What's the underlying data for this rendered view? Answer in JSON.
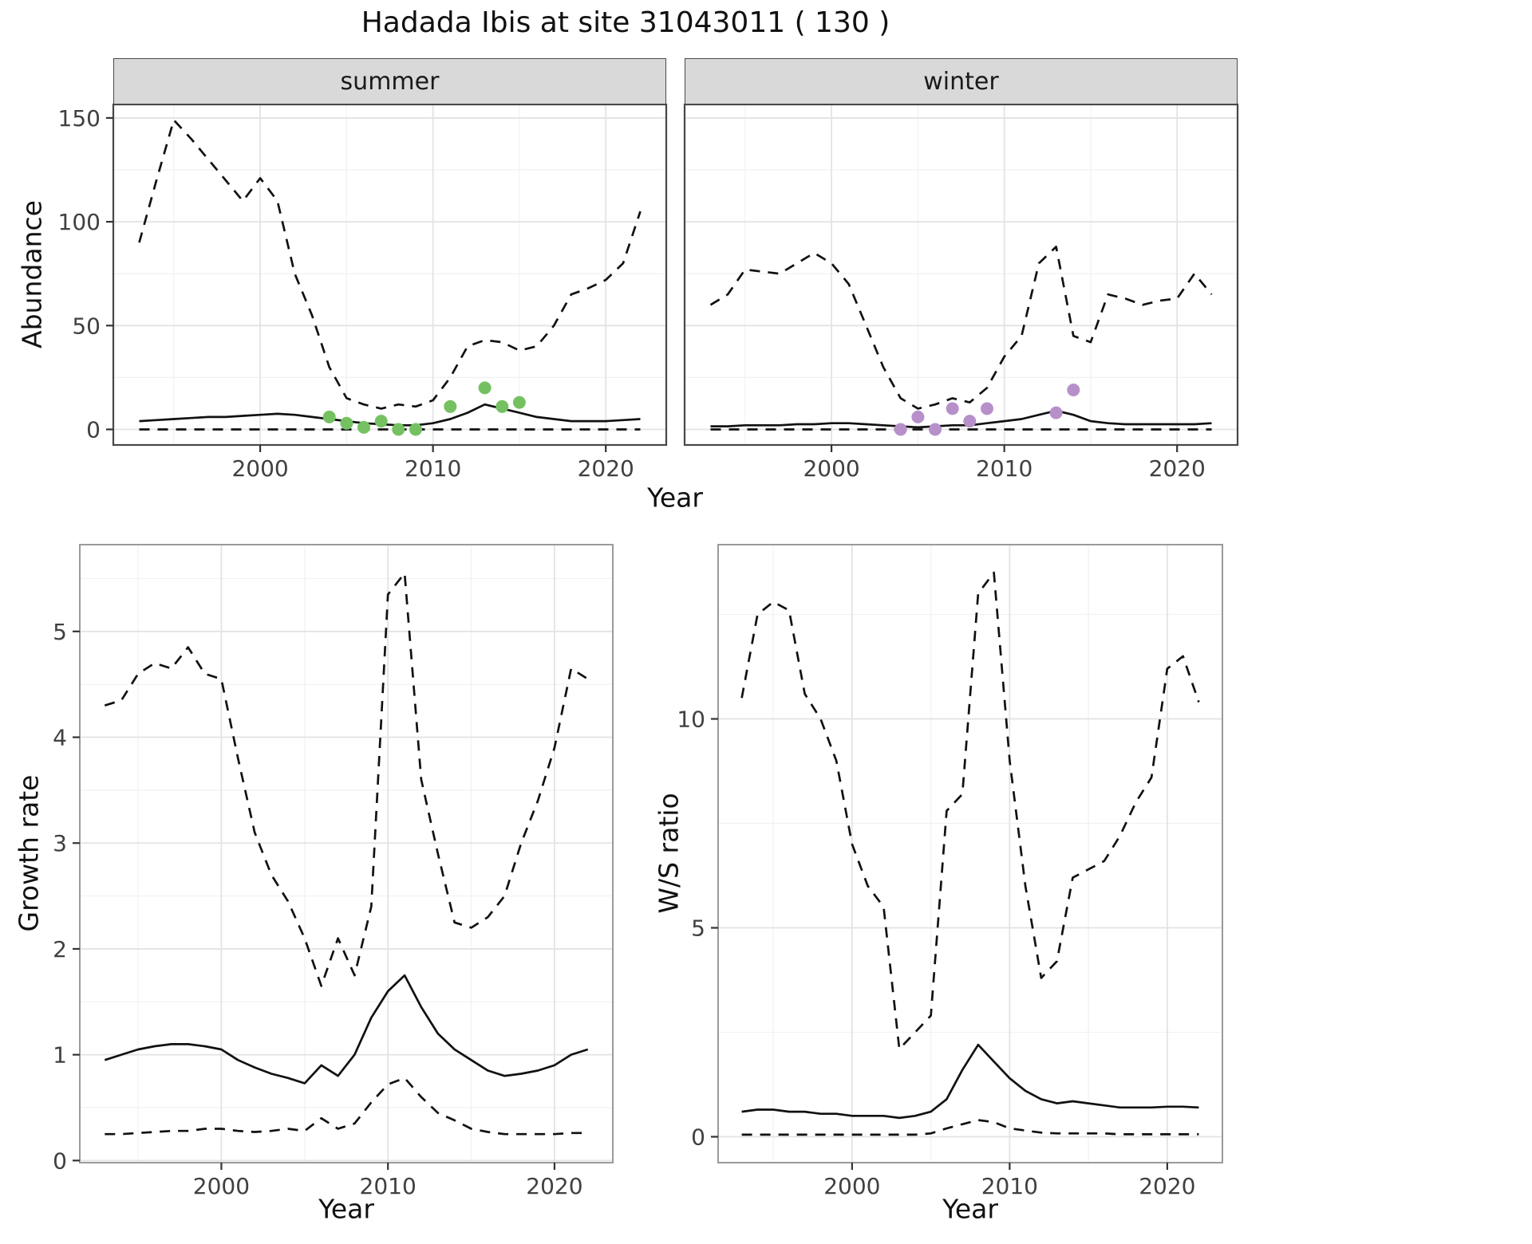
{
  "title": "Hadada Ibis at site 31043011 ( 130 )",
  "colors": {
    "line": "#111111",
    "strip_background": "#d9d9d9",
    "summer_points": "#75c162",
    "winter_points": "#b790ca"
  },
  "chart_data": [
    {
      "id": "abundance_summer",
      "type": "line",
      "facet_label": "summer",
      "xlabel": "Year",
      "ylabel": "Abundance",
      "xlim": [
        1991.5,
        2023.5
      ],
      "ylim": [
        -7.5,
        156.5
      ],
      "xticks": [
        2000,
        2010,
        2020
      ],
      "yticks": [
        0,
        50,
        100,
        150
      ],
      "x_years": [
        1993,
        1994,
        1995,
        1996,
        1997,
        1998,
        1999,
        2000,
        2001,
        2002,
        2003,
        2004,
        2005,
        2006,
        2007,
        2008,
        2009,
        2010,
        2011,
        2012,
        2013,
        2014,
        2015,
        2016,
        2017,
        2018,
        2019,
        2020,
        2021,
        2022
      ],
      "series": [
        {
          "name": "upper_ci",
          "style": "dashed",
          "values": [
            90,
            120,
            149,
            140,
            130,
            120,
            110,
            121,
            110,
            75,
            55,
            30,
            15,
            12,
            10,
            12,
            11,
            14,
            25,
            40,
            43,
            42,
            38,
            40,
            50,
            65,
            68,
            72,
            80,
            105
          ]
        },
        {
          "name": "median",
          "style": "solid",
          "values": [
            4,
            4.5,
            5,
            5.5,
            6,
            6,
            6.5,
            7,
            7.5,
            7,
            6,
            5,
            4,
            3,
            2.5,
            2,
            2,
            3,
            5,
            8,
            12,
            10,
            8,
            6,
            5,
            4,
            4,
            4,
            4.5,
            5
          ]
        },
        {
          "name": "lower_ci",
          "style": "dashed",
          "values": [
            0,
            0,
            0,
            0,
            0,
            0,
            0,
            0,
            0,
            0,
            0,
            0,
            0,
            0,
            0,
            0,
            0,
            0,
            0,
            0,
            0,
            0,
            0,
            0,
            0,
            0,
            0,
            0,
            0,
            0
          ]
        }
      ],
      "points": {
        "name": "observed_counts",
        "color": "#75c162",
        "x": [
          2004,
          2005,
          2006,
          2007,
          2008,
          2009,
          2011,
          2013,
          2014,
          2015
        ],
        "y": [
          6,
          3,
          1,
          4,
          0,
          0,
          11,
          20,
          11,
          13
        ]
      }
    },
    {
      "id": "abundance_winter",
      "type": "line",
      "facet_label": "winter",
      "xlabel": "Year",
      "ylabel": "Abundance",
      "xlim": [
        1991.5,
        2023.5
      ],
      "ylim": [
        -7.5,
        156.5
      ],
      "xticks": [
        2000,
        2010,
        2020
      ],
      "yticks": [
        0,
        50,
        100,
        150
      ],
      "x_years": [
        1993,
        1994,
        1995,
        1996,
        1997,
        1998,
        1999,
        2000,
        2001,
        2002,
        2003,
        2004,
        2005,
        2006,
        2007,
        2008,
        2009,
        2010,
        2011,
        2012,
        2013,
        2014,
        2015,
        2016,
        2017,
        2018,
        2019,
        2020,
        2021,
        2022
      ],
      "series": [
        {
          "name": "upper_ci",
          "style": "dashed",
          "values": [
            60,
            65,
            77,
            76,
            75,
            80,
            85,
            80,
            70,
            50,
            30,
            15,
            10,
            12,
            15,
            13,
            20,
            35,
            45,
            80,
            88,
            45,
            42,
            65,
            63,
            60,
            62,
            63,
            75,
            65
          ]
        },
        {
          "name": "median",
          "style": "solid",
          "values": [
            1.5,
            1.5,
            2,
            2,
            2,
            2.5,
            2.5,
            3,
            3,
            2.5,
            2,
            1.5,
            1,
            1.5,
            2,
            2,
            3,
            4,
            5,
            7,
            9,
            7,
            4,
            3,
            2.5,
            2.5,
            2.5,
            2.5,
            2.5,
            3
          ]
        },
        {
          "name": "lower_ci",
          "style": "dashed",
          "values": [
            0,
            0,
            0,
            0,
            0,
            0,
            0,
            0,
            0,
            0,
            0,
            0,
            0,
            0,
            0,
            0,
            0,
            0,
            0,
            0,
            0,
            0,
            0,
            0,
            0,
            0,
            0,
            0,
            0,
            0
          ]
        }
      ],
      "points": {
        "name": "observed_counts",
        "color": "#b790ca",
        "x": [
          2004,
          2005,
          2006,
          2007,
          2008,
          2009,
          2013,
          2014
        ],
        "y": [
          0,
          6,
          0,
          10,
          4,
          10,
          8,
          19
        ]
      }
    },
    {
      "id": "growth_rate",
      "type": "line",
      "facet_label": "",
      "xlabel": "Year",
      "ylabel": "Growth rate",
      "xlim": [
        1991.5,
        2023.5
      ],
      "ylim": [
        -0.02,
        5.82
      ],
      "xticks": [
        2000,
        2010,
        2020
      ],
      "yticks": [
        0,
        1,
        2,
        3,
        4,
        5
      ],
      "x_years": [
        1993,
        1994,
        1995,
        1996,
        1997,
        1998,
        1999,
        2000,
        2001,
        2002,
        2003,
        2004,
        2005,
        2006,
        2007,
        2008,
        2009,
        2010,
        2011,
        2012,
        2013,
        2014,
        2015,
        2016,
        2017,
        2018,
        2019,
        2020,
        2021,
        2022
      ],
      "series": [
        {
          "name": "upper_ci",
          "style": "dashed",
          "values": [
            4.3,
            4.35,
            4.6,
            4.7,
            4.65,
            4.85,
            4.6,
            4.55,
            3.8,
            3.1,
            2.7,
            2.45,
            2.1,
            1.65,
            2.1,
            1.75,
            2.4,
            5.35,
            5.55,
            3.6,
            2.9,
            2.25,
            2.2,
            2.3,
            2.5,
            3.0,
            3.4,
            3.9,
            4.65,
            4.55
          ]
        },
        {
          "name": "median",
          "style": "solid",
          "values": [
            0.95,
            1.0,
            1.05,
            1.08,
            1.1,
            1.1,
            1.08,
            1.05,
            0.95,
            0.88,
            0.82,
            0.78,
            0.73,
            0.9,
            0.8,
            1.0,
            1.35,
            1.6,
            1.75,
            1.45,
            1.2,
            1.05,
            0.95,
            0.85,
            0.8,
            0.82,
            0.85,
            0.9,
            1.0,
            1.05
          ]
        },
        {
          "name": "lower_ci",
          "style": "dashed",
          "values": [
            0.25,
            0.25,
            0.26,
            0.27,
            0.28,
            0.28,
            0.3,
            0.3,
            0.28,
            0.27,
            0.28,
            0.3,
            0.28,
            0.4,
            0.3,
            0.35,
            0.55,
            0.72,
            0.78,
            0.6,
            0.45,
            0.38,
            0.3,
            0.27,
            0.25,
            0.25,
            0.25,
            0.25,
            0.26,
            0.26
          ]
        }
      ]
    },
    {
      "id": "ws_ratio",
      "type": "line",
      "facet_label": "",
      "xlabel": "Year",
      "ylabel": "W/S ratio",
      "xlim": [
        1991.5,
        2023.5
      ],
      "ylim": [
        -0.62,
        14.17
      ],
      "xticks": [
        2000,
        2010,
        2020
      ],
      "yticks": [
        0,
        5,
        10
      ],
      "x_years": [
        1993,
        1994,
        1995,
        1996,
        1997,
        1998,
        1999,
        2000,
        2001,
        2002,
        2003,
        2004,
        2005,
        2006,
        2007,
        2008,
        2009,
        2010,
        2011,
        2012,
        2013,
        2014,
        2015,
        2016,
        2017,
        2018,
        2019,
        2020,
        2021,
        2022
      ],
      "series": [
        {
          "name": "upper_ci",
          "style": "dashed",
          "values": [
            10.5,
            12.5,
            12.8,
            12.6,
            10.6,
            10.0,
            9.0,
            7.0,
            6.0,
            5.5,
            2.1,
            2.5,
            2.9,
            7.8,
            8.2,
            13.0,
            13.5,
            9.0,
            6.0,
            3.8,
            4.2,
            6.2,
            6.4,
            6.6,
            7.2,
            8.0,
            8.6,
            11.2,
            11.5,
            10.4
          ]
        },
        {
          "name": "median",
          "style": "solid",
          "values": [
            0.6,
            0.65,
            0.65,
            0.6,
            0.6,
            0.55,
            0.55,
            0.5,
            0.5,
            0.5,
            0.45,
            0.5,
            0.6,
            0.9,
            1.6,
            2.2,
            1.8,
            1.4,
            1.1,
            0.9,
            0.8,
            0.85,
            0.8,
            0.75,
            0.7,
            0.7,
            0.7,
            0.72,
            0.72,
            0.7
          ]
        },
        {
          "name": "lower_ci",
          "style": "dashed",
          "values": [
            0.05,
            0.05,
            0.05,
            0.05,
            0.05,
            0.05,
            0.05,
            0.05,
            0.05,
            0.05,
            0.05,
            0.05,
            0.08,
            0.2,
            0.3,
            0.4,
            0.35,
            0.2,
            0.15,
            0.1,
            0.08,
            0.08,
            0.08,
            0.08,
            0.06,
            0.06,
            0.06,
            0.06,
            0.06,
            0.06
          ]
        }
      ]
    }
  ]
}
